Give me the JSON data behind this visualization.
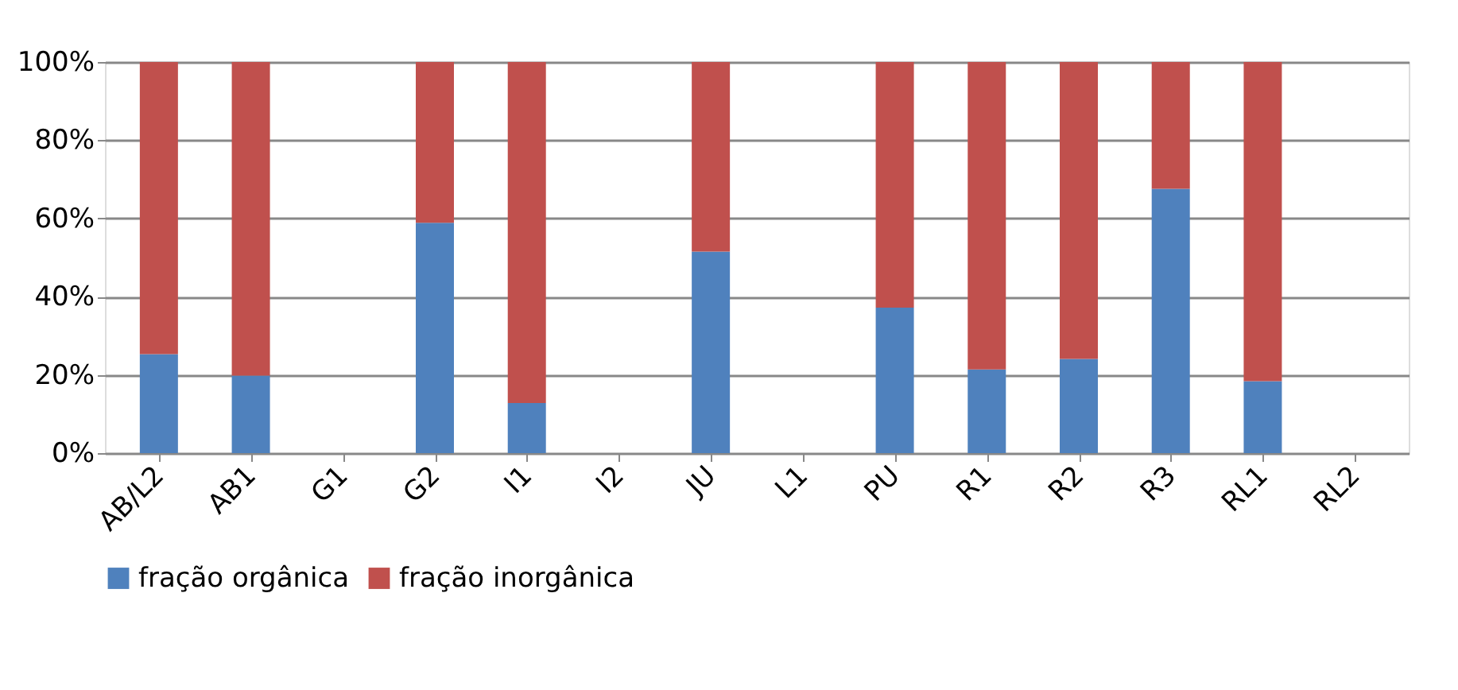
{
  "chart_data": {
    "type": "bar",
    "stacked": true,
    "categories": [
      "AB/L2",
      "AB1",
      "G1",
      "G2",
      "I1",
      "I2",
      "JU",
      "L1",
      "PU",
      "R1",
      "R2",
      "R3",
      "RL1",
      "RL2"
    ],
    "series": [
      {
        "name": "fração orgânica",
        "color": "#4f81bd",
        "values": [
          25.3,
          19.8,
          null,
          58.9,
          12.8,
          null,
          51.5,
          null,
          37.2,
          21.4,
          24.1,
          67.6,
          18.4,
          null
        ]
      },
      {
        "name": "fração inorgânica",
        "color": "#c0504d",
        "values": [
          74.7,
          80.2,
          null,
          41.1,
          87.2,
          null,
          48.5,
          null,
          62.8,
          78.6,
          75.9,
          32.4,
          81.6,
          null
        ]
      }
    ],
    "ylim": [
      0,
      100
    ],
    "yticks": [
      {
        "value": 0,
        "label": "0%"
      },
      {
        "value": 20,
        "label": "20%"
      },
      {
        "value": 40,
        "label": "40%"
      },
      {
        "value": 60,
        "label": "60%"
      },
      {
        "value": 80,
        "label": "80%"
      },
      {
        "value": 100,
        "label": "100%"
      }
    ],
    "grid": "y",
    "legend": "bottom"
  }
}
